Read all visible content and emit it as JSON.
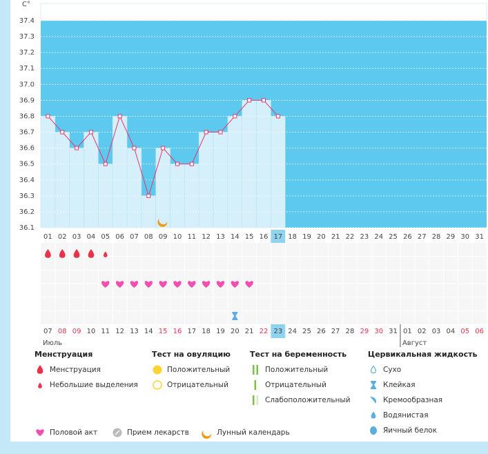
{
  "chart_data": {
    "type": "line",
    "y_label": "C°",
    "categories": [
      "01",
      "02",
      "03",
      "04",
      "05",
      "06",
      "07",
      "08",
      "09",
      "10",
      "11",
      "12",
      "13",
      "14",
      "15",
      "16",
      "17",
      "18",
      "19",
      "20",
      "21",
      "22",
      "23",
      "24",
      "25",
      "26",
      "27",
      "28",
      "29",
      "30",
      "31"
    ],
    "series": [
      {
        "color": "#e8336b",
        "values": [
          36.8,
          36.7,
          36.6,
          36.7,
          36.5,
          36.8,
          36.6,
          36.3,
          36.6,
          36.5,
          36.5,
          36.7,
          36.7,
          36.8,
          36.9,
          36.9,
          36.8,
          null,
          null,
          null,
          null,
          null,
          null,
          null,
          null,
          null,
          null,
          null,
          null,
          null,
          null
        ]
      }
    ],
    "ylim": [
      36.1,
      37.4
    ],
    "yticks": [
      37.4,
      37.3,
      37.2,
      37.1,
      {
        "value": 37,
        "label": "37.0"
      },
      36.9,
      36.8,
      36.7,
      36.6,
      36.5,
      36.4,
      36.3,
      36.2,
      36.1
    ],
    "grid": true,
    "bar_color": "#d5f0fb",
    "background_color": "#5ec9ee",
    "highlight_category": "17"
  },
  "calendar": {
    "dates": [
      {
        "label": "07",
        "weekend": false
      },
      {
        "label": "08",
        "weekend": true
      },
      {
        "label": "09",
        "weekend": true
      },
      {
        "label": "10",
        "weekend": false
      },
      {
        "label": "11",
        "weekend": false
      },
      {
        "label": "12",
        "weekend": false
      },
      {
        "label": "13",
        "weekend": false
      },
      {
        "label": "14",
        "weekend": false
      },
      {
        "label": "15",
        "weekend": true
      },
      {
        "label": "16",
        "weekend": true
      },
      {
        "label": "17",
        "weekend": false
      },
      {
        "label": "18",
        "weekend": false
      },
      {
        "label": "19",
        "weekend": false
      },
      {
        "label": "20",
        "weekend": false
      },
      {
        "label": "21",
        "weekend": false
      },
      {
        "label": "22",
        "weekend": true
      },
      {
        "label": "23",
        "weekend": false
      },
      {
        "label": "24",
        "weekend": false
      },
      {
        "label": "25",
        "weekend": false
      },
      {
        "label": "26",
        "weekend": false
      },
      {
        "label": "27",
        "weekend": false
      },
      {
        "label": "28",
        "weekend": false
      },
      {
        "label": "29",
        "weekend": true
      },
      {
        "label": "30",
        "weekend": true
      },
      {
        "label": "31",
        "weekend": false
      },
      {
        "label": "01",
        "weekend": false
      },
      {
        "label": "02",
        "weekend": false
      },
      {
        "label": "03",
        "weekend": false
      },
      {
        "label": "04",
        "weekend": false
      },
      {
        "label": "05",
        "weekend": true
      },
      {
        "label": "06",
        "weekend": true
      }
    ],
    "highlight_date": "23",
    "months": [
      {
        "label": "Июль",
        "start": 0
      },
      {
        "label": "Август",
        "start": 25
      }
    ]
  },
  "events": {
    "menstruation": [
      {
        "day": "01",
        "icon": "drop"
      },
      {
        "day": "02",
        "icon": "drop"
      },
      {
        "day": "03",
        "icon": "drop"
      },
      {
        "day": "04",
        "icon": "drop"
      },
      {
        "day": "05",
        "icon": "drop-small"
      }
    ],
    "intercourse": [
      "05",
      "06",
      "07",
      "08",
      "09",
      "10",
      "11",
      "12",
      "13",
      "14",
      "15"
    ],
    "cervical": [
      {
        "day": "14",
        "icon": "sticky"
      }
    ],
    "lunar": [
      "09"
    ]
  },
  "legend": {
    "sections": [
      {
        "title": "Менструация",
        "items": [
          {
            "label": "Менструация",
            "icon": "drop"
          },
          {
            "label": "Небольшие выделения",
            "icon": "drop-small"
          }
        ]
      },
      {
        "title": "Тест на овуляцию",
        "items": [
          {
            "label": "Положительный",
            "icon": "circle-full"
          },
          {
            "label": "Отрицательный",
            "icon": "circle-empty"
          }
        ]
      },
      {
        "title": "Тест на беременность",
        "items": [
          {
            "label": "Положительный",
            "icon": "bars-two"
          },
          {
            "label": "Отрицательный",
            "icon": "bars-one"
          },
          {
            "label": "Слабоположительный",
            "icon": "bars-weak"
          }
        ]
      },
      {
        "title": "Цервикальная жидкость",
        "items": [
          {
            "label": "Сухо",
            "icon": "dry"
          },
          {
            "label": "Клейкая",
            "icon": "sticky"
          },
          {
            "label": "Кремообразная",
            "icon": "creamy"
          },
          {
            "label": "Водянистая",
            "icon": "watery"
          },
          {
            "label": "Яичный белок",
            "icon": "eggwhite"
          }
        ]
      }
    ],
    "bottom": [
      {
        "label": "Половой акт",
        "icon": "heart"
      },
      {
        "label": "Прием лекарств",
        "icon": "pill"
      },
      {
        "label": "Лунный календарь",
        "icon": "moon"
      }
    ]
  }
}
